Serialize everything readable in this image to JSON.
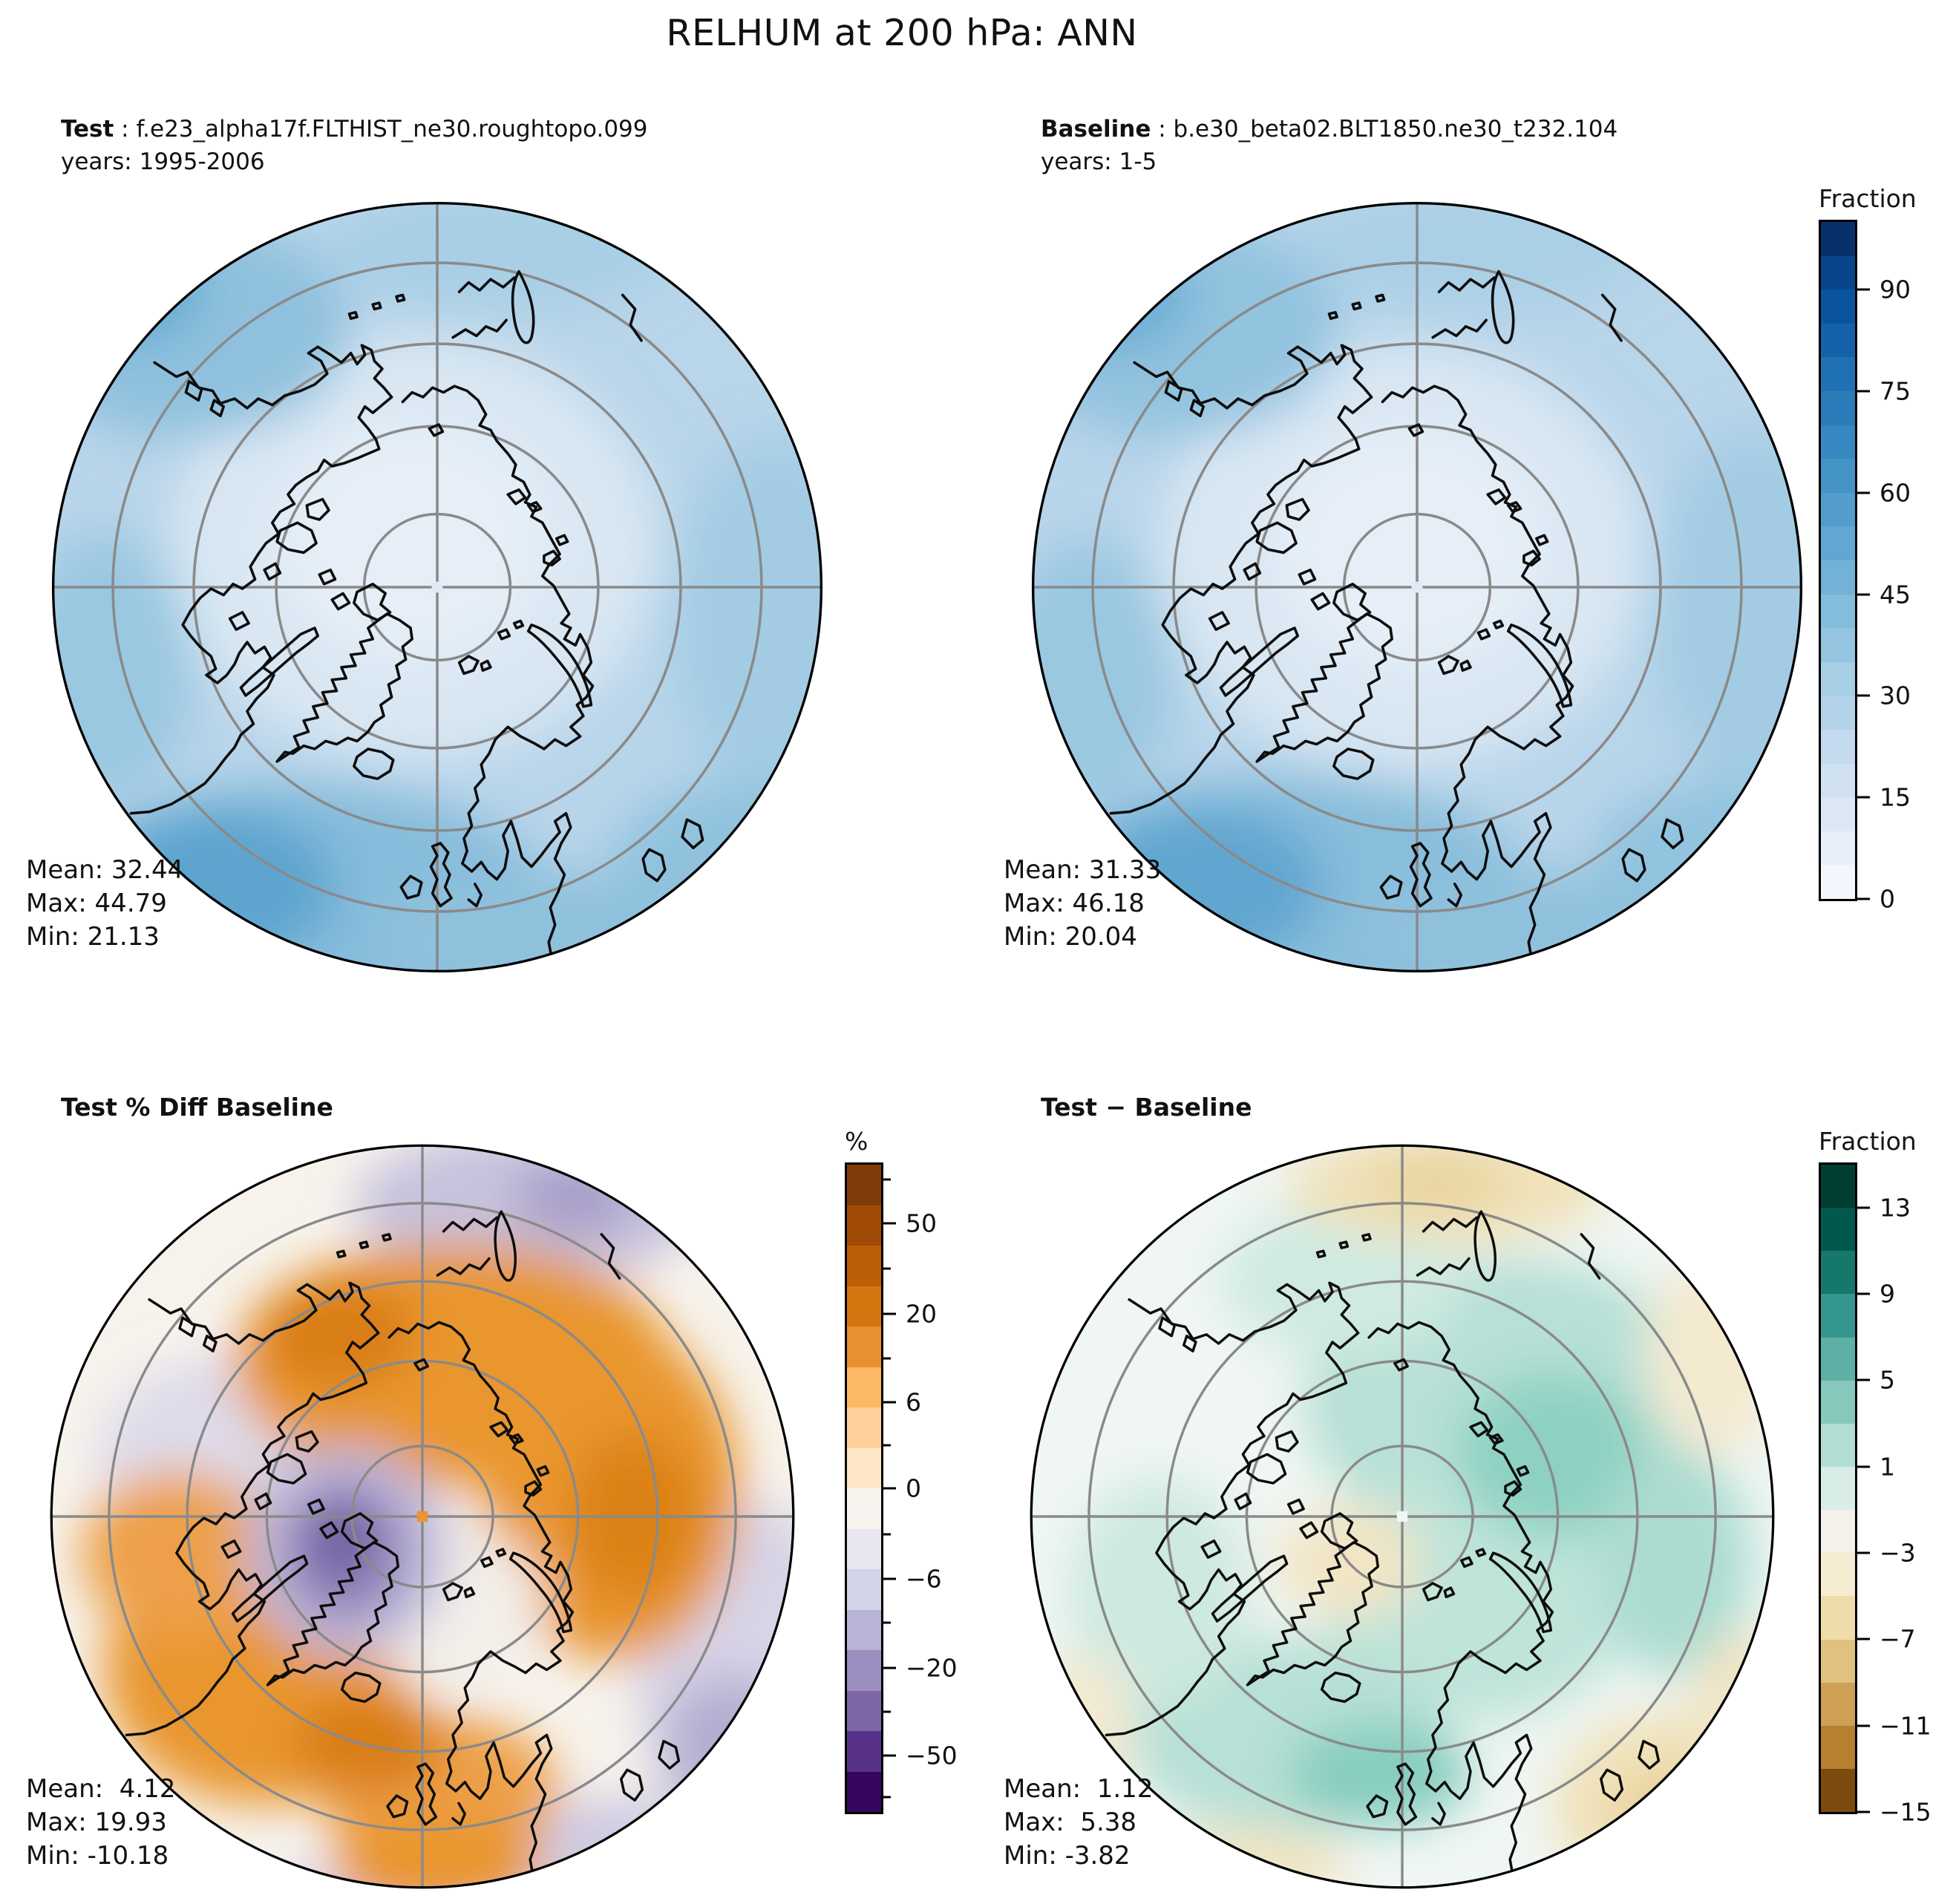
{
  "figure_title": "RELHUM at 200 hPa: ANN",
  "panels": {
    "test": {
      "label": "Test",
      "run": " : f.e23_alpha17f.FLTHIST_ne30.roughtopo.099",
      "years": "years: 1995-2006",
      "mean": "Mean: 32.44",
      "max": "Max: 44.79",
      "min": "Min: 21.13"
    },
    "baseline": {
      "label": "Baseline",
      "run": " : b.e30_beta02.BLT1850.ne30_t232.104",
      "years": "years: 1-5",
      "mean": "Mean: 31.33",
      "max": "Max: 46.18",
      "min": "Min: 20.04"
    },
    "pct_diff": {
      "title": "Test % Diff Baseline",
      "mean": "Mean:  4.12",
      "max": "Max: 19.93",
      "min": "Min: -10.18"
    },
    "diff": {
      "title": "Test − Baseline",
      "mean": "Mean:  1.12",
      "max": "Max:  5.38",
      "min": "Min: -3.82"
    }
  },
  "colorbars": [
    {
      "id": "cb-fraction-top",
      "title": "Fraction",
      "segments": [
        "#08306b",
        "#08468b",
        "#0a549e",
        "#1561a9",
        "#2070b4",
        "#2c7cba",
        "#3787c0",
        "#4493c7",
        "#529dcc",
        "#61a7d2",
        "#72b2d8",
        "#84bcdb",
        "#94c4df",
        "#a6cee4",
        "#b4d3e9",
        "#c4daee",
        "#d0e1f2",
        "#dce8f6",
        "#e7f0fa",
        "#f2f7fd"
      ],
      "ticks": [
        {
          "label": "90",
          "f": 0.1
        },
        {
          "label": "75",
          "f": 0.25
        },
        {
          "label": "60",
          "f": 0.4
        },
        {
          "label": "45",
          "f": 0.55
        },
        {
          "label": "30",
          "f": 0.7
        },
        {
          "label": "15",
          "f": 0.85
        },
        {
          "label": "0",
          "f": 1.0
        }
      ],
      "minor": []
    },
    {
      "id": "cb-percent",
      "title": "%",
      "segments": [
        "#7f3b08",
        "#a04b07",
        "#bd5f06",
        "#d5750f",
        "#e89032",
        "#fdb863",
        "#fed19c",
        "#fee7c8",
        "#f7f3ee",
        "#e7e6f1",
        "#d3d4e7",
        "#b9b3d6",
        "#9a8fc0",
        "#7d66a3",
        "#583289",
        "#36065e"
      ],
      "ticks": [
        {
          "label": "50",
          "f": 0.091
        },
        {
          "label": "20",
          "f": 0.231
        },
        {
          "label": "6",
          "f": 0.367
        },
        {
          "label": "0",
          "f": 0.5
        },
        {
          "label": "−6",
          "f": 0.64
        },
        {
          "label": "−20",
          "f": 0.777
        },
        {
          "label": "−50",
          "f": 0.913
        }
      ],
      "minor": [
        0.023,
        0.161,
        0.299,
        0.434,
        0.571,
        0.708,
        0.845,
        0.977
      ]
    },
    {
      "id": "cb-fraction-diff",
      "title": "Fraction",
      "segments": [
        "#003d33",
        "#01594b",
        "#15786a",
        "#35978f",
        "#5fb0a4",
        "#88c8bc",
        "#b2ddd4",
        "#d8ede8",
        "#f3f1ea",
        "#f6ecd2",
        "#efdcab",
        "#e0c27e",
        "#cda055",
        "#b5802f",
        "#7c4a0d"
      ],
      "ticks": [
        {
          "label": "13",
          "f": 0.067
        },
        {
          "label": "9",
          "f": 0.2
        },
        {
          "label": "5",
          "f": 0.333
        },
        {
          "label": "1",
          "f": 0.467
        },
        {
          "label": "−3",
          "f": 0.6
        },
        {
          "label": "−7",
          "f": 0.733
        },
        {
          "label": "−11",
          "f": 0.867
        },
        {
          "label": "−15",
          "f": 1.0
        }
      ],
      "minor": []
    }
  ],
  "chart_data": [
    {
      "type": "heatmap",
      "subtype": "filled_contour_map",
      "projection": "north_polar_stereographic",
      "panel": "top-left",
      "title": "Test : f.e23_alpha17f.FLTHIST_ne30.roughtopo.099",
      "subtitle": "years: 1995-2006",
      "variable": "RELHUM at 200 hPa",
      "season": "ANN",
      "units": "Fraction",
      "stats": {
        "mean": 32.44,
        "max": 44.79,
        "min": 21.13
      },
      "colorbar": {
        "title": "Fraction",
        "range": [
          0,
          100
        ],
        "tick_labels": [
          0,
          15,
          30,
          45,
          60,
          75,
          90
        ],
        "colormap": "Blues",
        "n_levels": 20
      },
      "legend_position": "right",
      "grid": "graticule circles + crosshair, gray"
    },
    {
      "type": "heatmap",
      "subtype": "filled_contour_map",
      "projection": "north_polar_stereographic",
      "panel": "top-right",
      "title": "Baseline : b.e30_beta02.BLT1850.ne30_t232.104",
      "subtitle": "years: 1-5",
      "variable": "RELHUM at 200 hPa",
      "season": "ANN",
      "units": "Fraction",
      "stats": {
        "mean": 31.33,
        "max": 46.18,
        "min": 20.04
      },
      "colorbar": {
        "title": "Fraction",
        "range": [
          0,
          100
        ],
        "tick_labels": [
          0,
          15,
          30,
          45,
          60,
          75,
          90
        ],
        "colormap": "Blues",
        "n_levels": 20
      },
      "legend_position": "shared-right",
      "grid": "graticule circles + crosshair, gray"
    },
    {
      "type": "heatmap",
      "subtype": "filled_contour_map",
      "projection": "north_polar_stereographic",
      "panel": "bottom-left",
      "title": "Test % Diff Baseline",
      "units": "%",
      "stats": {
        "mean": 4.12,
        "max": 19.93,
        "min": -10.18
      },
      "colorbar": {
        "title": "%",
        "tick_labels": [
          50,
          20,
          6,
          0,
          -6,
          -20,
          -50
        ],
        "colormap": "PuOr_r",
        "n_levels": 16
      },
      "legend_position": "right",
      "grid": "graticule circles + crosshair, gray"
    },
    {
      "type": "heatmap",
      "subtype": "filled_contour_map",
      "projection": "north_polar_stereographic",
      "panel": "bottom-right",
      "title": "Test − Baseline",
      "units": "Fraction",
      "stats": {
        "mean": 1.12,
        "max": 5.38,
        "min": -3.82
      },
      "colorbar": {
        "title": "Fraction",
        "range": [
          -15,
          15
        ],
        "tick_labels": [
          13,
          9,
          5,
          1,
          -3,
          -7,
          -11,
          -15
        ],
        "colormap": "BrBG_r",
        "n_levels": 15
      },
      "legend_position": "right",
      "grid": "graticule circles + crosshair, gray"
    }
  ]
}
